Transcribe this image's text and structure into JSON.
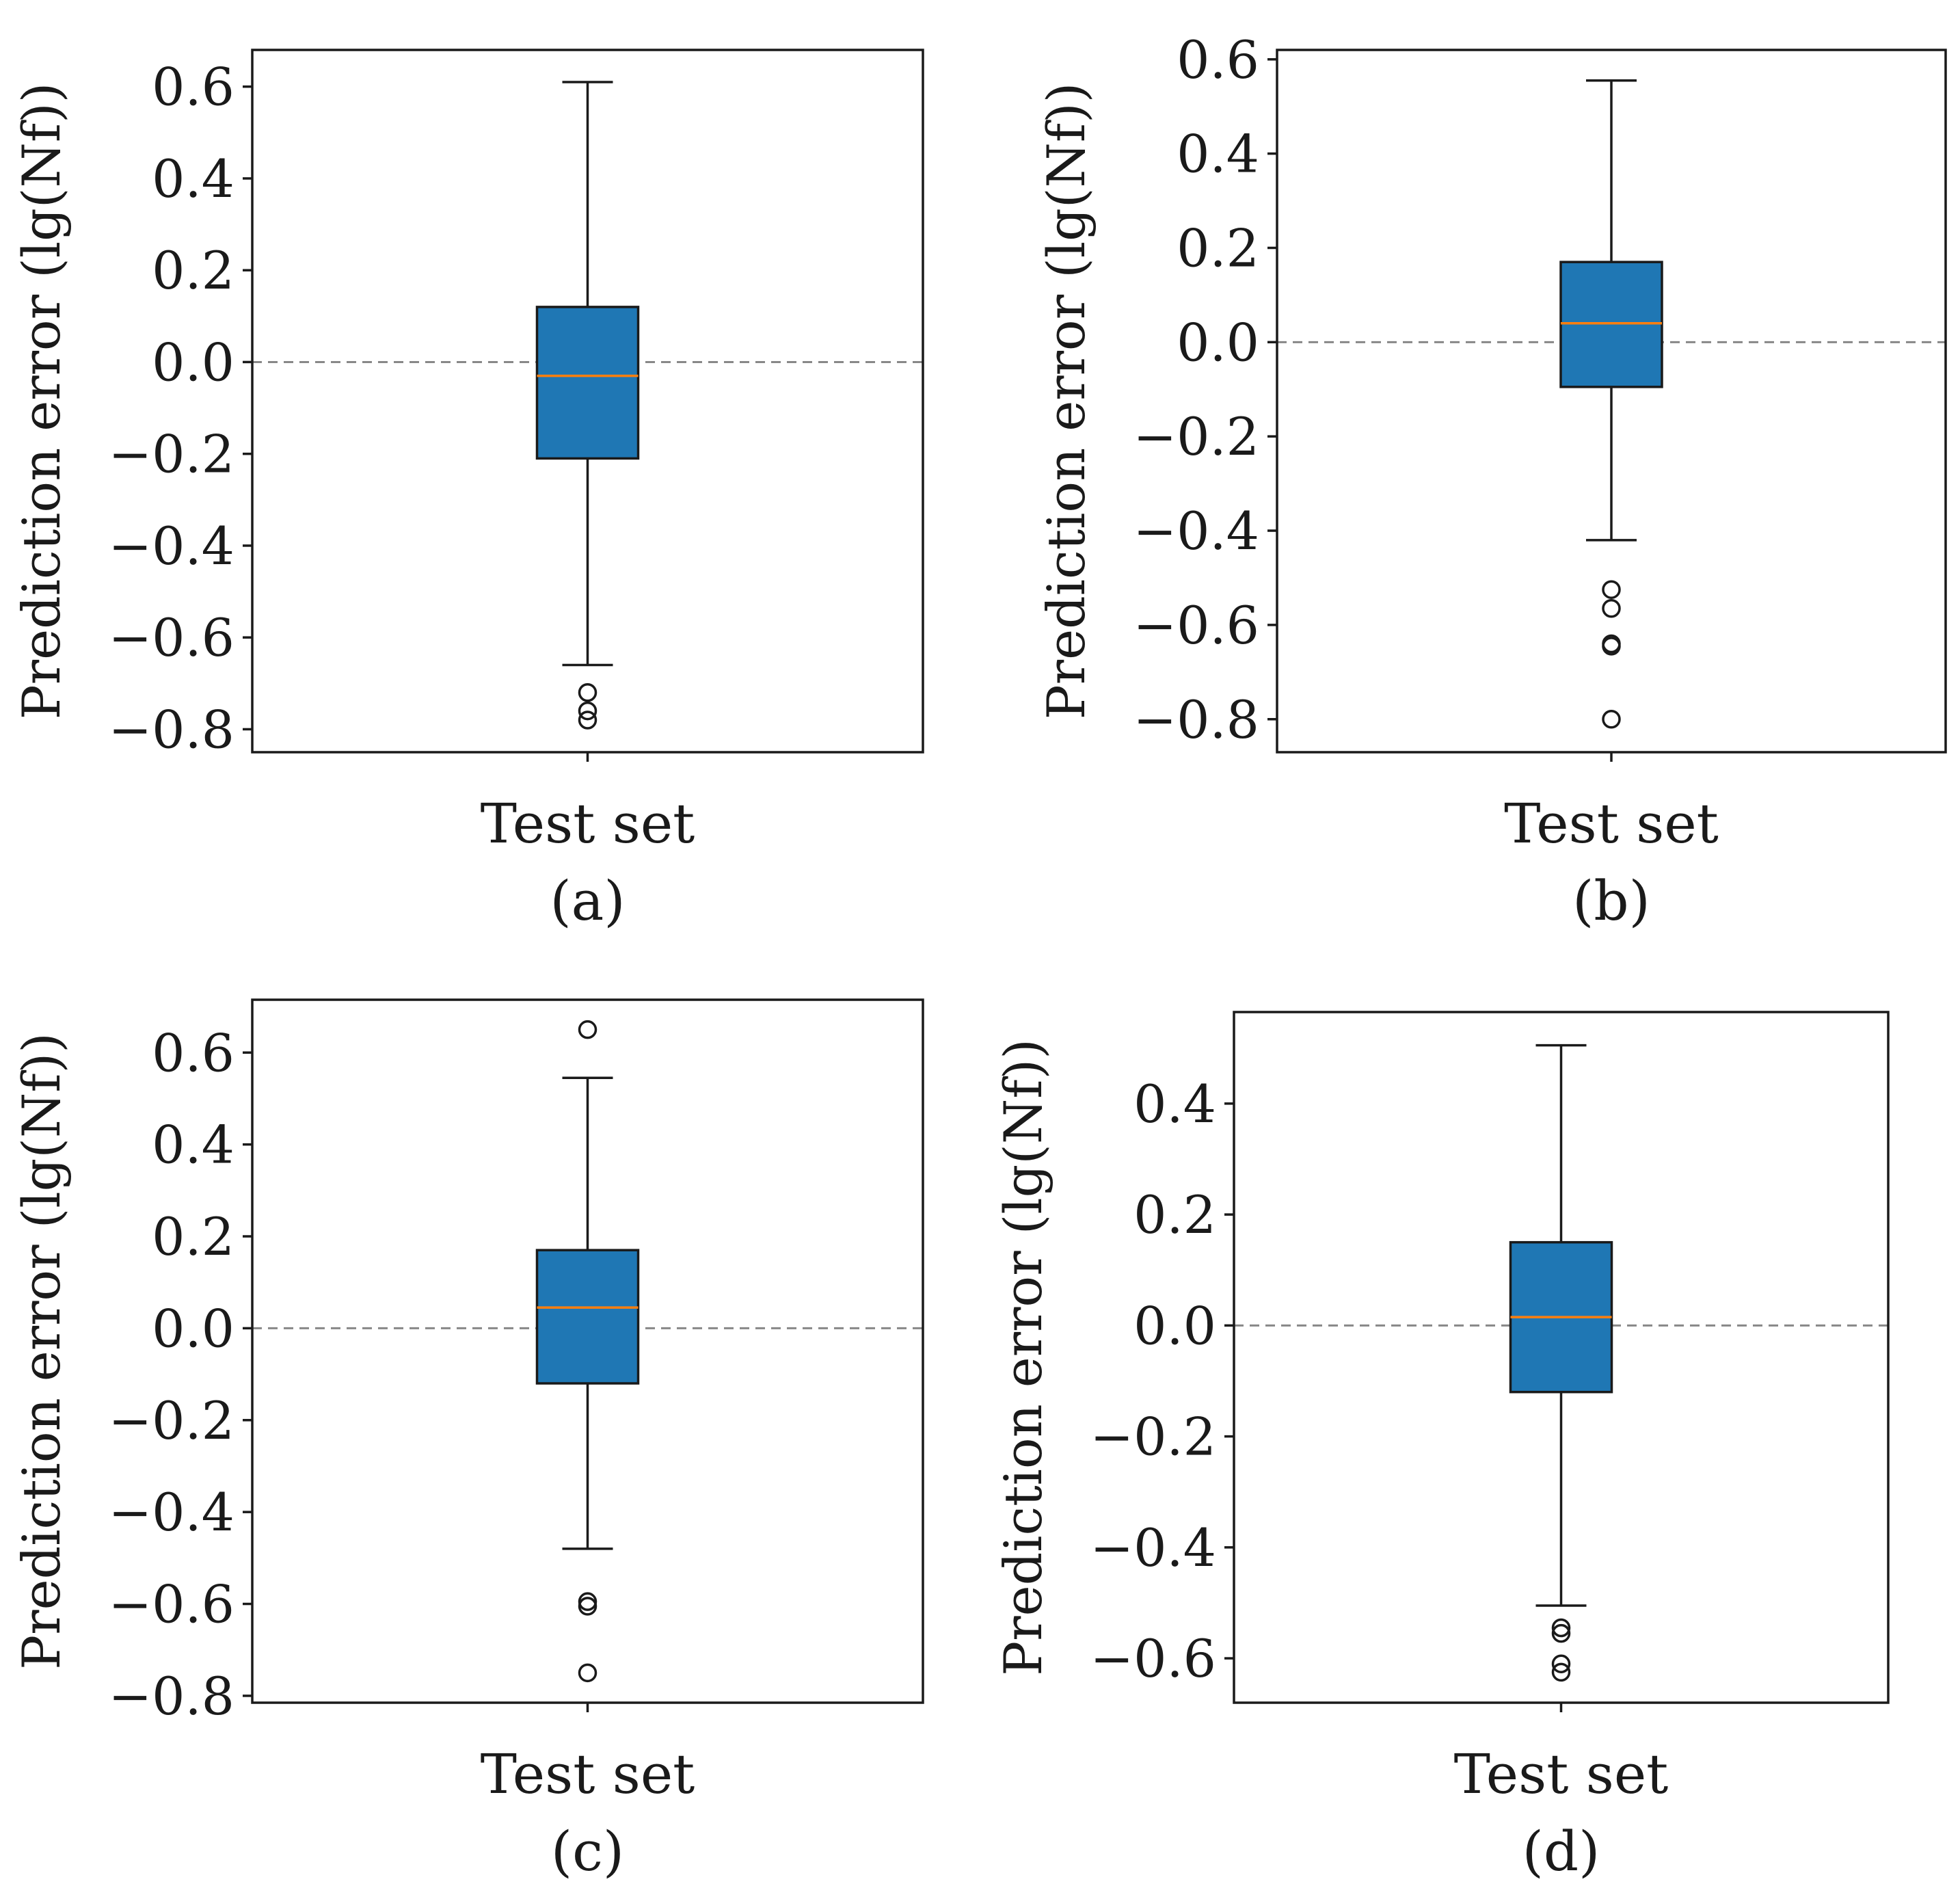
{
  "chart_data": [
    {
      "type": "box",
      "panel_label": "(a)",
      "category": "Test set",
      "ylabel": "Prediction error (lg(Nf))",
      "ylim": [
        -0.85,
        0.68
      ],
      "yticks": [
        0.6,
        0.4,
        0.2,
        0.0,
        -0.2,
        -0.4,
        -0.6,
        -0.8
      ],
      "ytick_labels": [
        "0.6",
        "0.4",
        "0.2",
        "0.0",
        "−0.2",
        "−0.4",
        "−0.6",
        "−0.8"
      ],
      "reference_line": 0.0,
      "box": {
        "whisker_high": 0.61,
        "q3": 0.12,
        "median": -0.03,
        "q1": -0.21,
        "whisker_low": -0.66
      },
      "outliers": [
        -0.72,
        -0.76,
        -0.78
      ]
    },
    {
      "type": "box",
      "panel_label": "(b)",
      "category": "Test set",
      "ylabel": "Prediction error (lg(Nf))",
      "ylim": [
        -0.87,
        0.62
      ],
      "yticks": [
        0.6,
        0.4,
        0.2,
        0.0,
        -0.2,
        -0.4,
        -0.6,
        -0.8
      ],
      "ytick_labels": [
        "0.6",
        "0.4",
        "0.2",
        "0.0",
        "−0.2",
        "−0.4",
        "−0.6",
        "−0.8"
      ],
      "reference_line": 0.0,
      "box": {
        "whisker_high": 0.555,
        "q3": 0.17,
        "median": 0.04,
        "q1": -0.095,
        "whisker_low": -0.42
      },
      "outliers": [
        -0.525,
        -0.565,
        -0.64,
        -0.645,
        -0.8
      ]
    },
    {
      "type": "box",
      "panel_label": "(c)",
      "category": "Test set",
      "ylabel": "Prediction error (lg(Nf))",
      "ylim": [
        -0.815,
        0.715
      ],
      "yticks": [
        0.6,
        0.4,
        0.2,
        0.0,
        -0.2,
        -0.4,
        -0.6,
        -0.8
      ],
      "ytick_labels": [
        "0.6",
        "0.4",
        "0.2",
        "0.0",
        "−0.2",
        "−0.4",
        "−0.6",
        "−0.8"
      ],
      "reference_line": 0.0,
      "box": {
        "whisker_high": 0.545,
        "q3": 0.17,
        "median": 0.045,
        "q1": -0.12,
        "whisker_low": -0.48
      },
      "outliers": [
        0.65,
        -0.595,
        -0.605,
        -0.75
      ]
    },
    {
      "type": "box",
      "panel_label": "(d)",
      "category": "Test set",
      "ylabel": "Prediction error (lg(Nf))",
      "ylim": [
        -0.68,
        0.565
      ],
      "yticks": [
        0.4,
        0.2,
        0.0,
        -0.2,
        -0.4,
        -0.6
      ],
      "ytick_labels": [
        "0.4",
        "0.2",
        "0.0",
        "−0.2",
        "−0.4",
        "−0.6"
      ],
      "reference_line": 0.0,
      "box": {
        "whisker_high": 0.505,
        "q3": 0.15,
        "median": 0.015,
        "q1": -0.12,
        "whisker_low": -0.505
      },
      "outliers": [
        -0.545,
        -0.555,
        -0.61,
        -0.625
      ]
    }
  ],
  "colors": {
    "box_fill": "#1f77b4",
    "median": "#ff7f0e",
    "reference_line": "#888888",
    "axes": "#1a1a1a"
  }
}
